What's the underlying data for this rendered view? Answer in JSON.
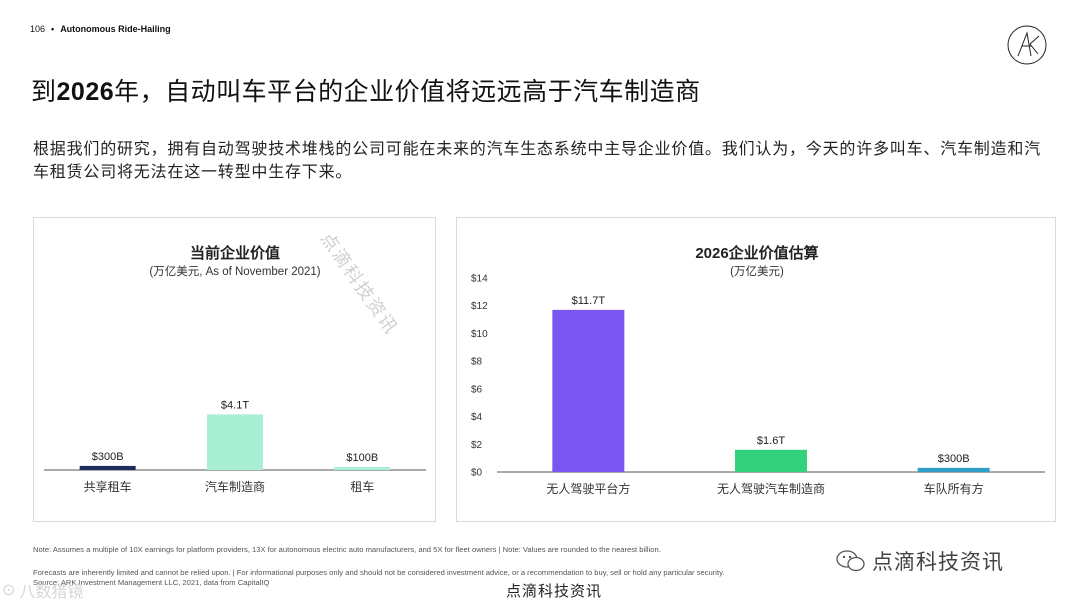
{
  "header": {
    "page_number": "106",
    "bullet": "•",
    "section": "Autonomous Ride-Hailing"
  },
  "title_parts": {
    "pre": "到",
    "year": "2026",
    "post": "年，自动叫车平台的企业价值将远远高于汽车制造商"
  },
  "lead": "根据我们的研究，拥有自动驾驶技术堆栈的公司可能在未来的汽车生态系统中主导企业价值。我们认为，今天的许多叫车、汽车制造和汽车租赁公司将无法在这一转型中生存下来。",
  "watermark_diagonal": "点滴科技资讯",
  "chart_data": [
    {
      "type": "bar",
      "title": "当前企业价值",
      "subtitle": "(万亿美元, As of November 2021)",
      "categories": [
        "共享租车",
        "汽车制造商",
        "租车"
      ],
      "values": [
        0.3,
        4.1,
        0.1
      ],
      "data_labels": [
        "$300B",
        "$4.1T",
        "$100B"
      ],
      "colors": [
        "#1f2d5c",
        "#a8efd3",
        "#a8efd3"
      ],
      "ylim": [
        0,
        14
      ],
      "grid": false
    },
    {
      "type": "bar",
      "title": "2026企业价值估算",
      "subtitle": "(万亿美元)",
      "categories": [
        "无人驾驶平台方",
        "无人驾驶汽车制造商",
        "车队所有方"
      ],
      "values": [
        11.7,
        1.6,
        0.3
      ],
      "data_labels": [
        "$11.7T",
        "$1.6T",
        "$300B"
      ],
      "colors": [
        "#7a55f2",
        "#33d17c",
        "#2f9fc8"
      ],
      "yticks": [
        "$14",
        "$12",
        "$10",
        "$8",
        "$6",
        "$4",
        "$2",
        "$0"
      ],
      "ylim": [
        0,
        14
      ],
      "grid": false
    }
  ],
  "notes": {
    "note1": "Note: Assumes a multiple of 10X earnings for platform providers, 13X for autonomous electric auto manufacturers, and 5X for fleet owners |  Note: Values are rounded to the nearest billion.",
    "note2": "Forecasts are inherently limited and cannot be relied upon. | For informational purposes only and should not be considered investment advice, or a recommendation to buy, sell or hold any particular security.",
    "note3": "Source: ARK Investment Management LLC, 2021, data from CapitalIQ"
  },
  "watermarks": {
    "bottom": "点滴科技资讯",
    "right": "点滴科技资讯",
    "left": "八数猎镜"
  }
}
